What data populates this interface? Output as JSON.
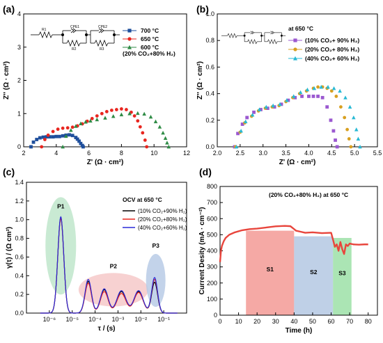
{
  "chart_data": [
    {
      "panel": "(a)",
      "type": "scatter",
      "xlabel": "Z' (Ω · cm²)",
      "ylabel": "Z'' (Ω · cm²)",
      "xlim": [
        2,
        12
      ],
      "ylim": [
        0,
        4
      ],
      "xticks": [
        "2",
        "4",
        "6",
        "8",
        "10",
        "12"
      ],
      "yticks": [
        "0",
        "1",
        "2",
        "3",
        "4"
      ],
      "legend_note": "(20% CO₂+80% H₂)",
      "circuit": [
        "R1",
        "CPE1",
        "R2",
        "CPE2",
        "R3"
      ],
      "series": [
        {
          "name": "700 °C",
          "color": "#1f4f9c",
          "marker": "square",
          "x": [
            2.45,
            2.6,
            2.8,
            3.0,
            3.2,
            3.4,
            3.6,
            3.8,
            4.0,
            4.2,
            4.4,
            4.6,
            4.8,
            5.0,
            5.2,
            5.3,
            5.4,
            5.5,
            5.6,
            5.65
          ],
          "y": [
            0.0,
            0.14,
            0.22,
            0.27,
            0.29,
            0.3,
            0.3,
            0.3,
            0.31,
            0.31,
            0.33,
            0.35,
            0.36,
            0.34,
            0.28,
            0.23,
            0.17,
            0.1,
            0.04,
            0.0
          ]
        },
        {
          "name": "650 °C",
          "color": "#e8261f",
          "marker": "circle",
          "x": [
            3.1,
            3.3,
            3.5,
            3.8,
            4.1,
            4.4,
            4.7,
            5.0,
            5.3,
            5.6,
            5.9,
            6.2,
            6.5,
            6.8,
            7.1,
            7.4,
            7.7,
            8.0,
            8.3,
            8.6,
            8.8,
            9.0,
            9.15,
            9.3,
            9.45,
            9.55
          ],
          "y": [
            0.0,
            0.22,
            0.35,
            0.46,
            0.53,
            0.56,
            0.57,
            0.59,
            0.63,
            0.69,
            0.77,
            0.85,
            0.93,
            1.0,
            1.06,
            1.1,
            1.12,
            1.14,
            1.12,
            1.04,
            0.93,
            0.78,
            0.6,
            0.42,
            0.2,
            0.0
          ]
        },
        {
          "name": "600 °C",
          "color": "#2e8b45",
          "marker": "triangle",
          "x": [
            4.4,
            4.6,
            4.9,
            5.2,
            5.5,
            5.8,
            6.1,
            6.5,
            7.0,
            7.5,
            8.0,
            8.5,
            9.0,
            9.4,
            9.8,
            10.1,
            10.35,
            10.55,
            10.7,
            10.8,
            10.9
          ],
          "y": [
            0.0,
            0.32,
            0.5,
            0.62,
            0.7,
            0.75,
            0.78,
            0.82,
            0.87,
            0.92,
            0.97,
            1.0,
            1.01,
            0.99,
            0.9,
            0.76,
            0.6,
            0.42,
            0.26,
            0.12,
            0.0
          ]
        }
      ]
    },
    {
      "panel": "(b)",
      "type": "scatter",
      "xlabel": "Z' (Ω · cm²)",
      "ylabel": "Z'' (Ω · cm²)",
      "xlim": [
        2.0,
        5.5
      ],
      "ylim": [
        0.0,
        1.0
      ],
      "xticks": [
        "2.0",
        "2.5",
        "3.0",
        "3.5",
        "4.0",
        "4.5",
        "5.0",
        "5.5"
      ],
      "yticks": [
        "0.0",
        "0.2",
        "0.4",
        "0.6",
        "0.8",
        "1.0"
      ],
      "legend_note": "at 650 °C",
      "series": [
        {
          "name": "(10% CO₂+ 90% H₂)",
          "color": "#9b59d0",
          "marker": "square",
          "x": [
            2.38,
            2.45,
            2.55,
            2.65,
            2.8,
            2.95,
            3.1,
            3.25,
            3.4,
            3.55,
            3.7,
            3.85,
            4.0,
            4.1,
            4.2,
            4.3,
            4.4,
            4.48,
            4.54,
            4.58,
            4.62
          ],
          "y": [
            0.0,
            0.1,
            0.17,
            0.22,
            0.26,
            0.28,
            0.29,
            0.3,
            0.32,
            0.35,
            0.37,
            0.38,
            0.38,
            0.38,
            0.38,
            0.37,
            0.3,
            0.2,
            0.12,
            0.05,
            0.0
          ]
        },
        {
          "name": "(20% CO₂+ 80% H₂)",
          "color": "#d8a020",
          "marker": "circle",
          "x": [
            2.4,
            2.5,
            2.6,
            2.75,
            2.9,
            3.05,
            3.2,
            3.35,
            3.5,
            3.65,
            3.8,
            3.95,
            4.1,
            4.2,
            4.3,
            4.4,
            4.5,
            4.6,
            4.7,
            4.78,
            4.84,
            4.88,
            4.92
          ],
          "y": [
            0.0,
            0.11,
            0.18,
            0.23,
            0.27,
            0.29,
            0.3,
            0.31,
            0.34,
            0.37,
            0.4,
            0.42,
            0.44,
            0.45,
            0.45,
            0.44,
            0.42,
            0.38,
            0.3,
            0.22,
            0.13,
            0.06,
            0.0
          ]
        },
        {
          "name": "(40% CO₂+ 60% H₂)",
          "color": "#28b9d4",
          "marker": "triangle",
          "x": [
            2.42,
            2.52,
            2.62,
            2.77,
            2.92,
            3.07,
            3.22,
            3.37,
            3.52,
            3.67,
            3.82,
            3.97,
            4.12,
            4.27,
            4.42,
            4.55,
            4.68,
            4.8,
            4.9,
            4.98,
            5.04,
            5.08,
            5.12
          ],
          "y": [
            0.0,
            0.12,
            0.19,
            0.24,
            0.28,
            0.3,
            0.31,
            0.32,
            0.35,
            0.38,
            0.41,
            0.43,
            0.44,
            0.45,
            0.45,
            0.44,
            0.42,
            0.37,
            0.3,
            0.22,
            0.13,
            0.06,
            0.0
          ]
        }
      ]
    },
    {
      "panel": "(c)",
      "type": "line",
      "xlabel": "τ / (s)",
      "ylabel": "γ(τ) / (Ω cm²)",
      "xscale": "log",
      "xlim": [
        1e-07,
        1
      ],
      "ylim": [
        0.0,
        1.4
      ],
      "xticks": [
        "10⁻⁶",
        "10⁻⁵",
        "10⁻⁴",
        "10⁻³",
        "10⁻²",
        "10⁻¹"
      ],
      "yticks": [
        "0.0",
        "0.2",
        "0.4",
        "0.6",
        "0.8",
        "1.0",
        "1.2",
        "1.4"
      ],
      "legend_title": "OCV at 650 °C",
      "regions": [
        "P1",
        "P2",
        "P3"
      ],
      "series": [
        {
          "name": "(10% CO₂+90% H₂)",
          "color": "#000000",
          "peaks": [
            {
              "logtau": -5.5,
              "h": 1.02,
              "w": 0.13
            },
            {
              "logtau": -4.3,
              "h": 0.34,
              "w": 0.14
            },
            {
              "logtau": -3.6,
              "h": 0.25,
              "w": 0.17
            },
            {
              "logtau": -2.85,
              "h": 0.23,
              "w": 0.2
            },
            {
              "logtau": -2.1,
              "h": 0.23,
              "w": 0.2
            },
            {
              "logtau": -1.4,
              "h": 0.33,
              "w": 0.13
            }
          ]
        },
        {
          "name": "(20% CO₂+80% H₂)",
          "color": "#e8261f",
          "peaks": [
            {
              "logtau": -5.5,
              "h": 1.01,
              "w": 0.13
            },
            {
              "logtau": -4.3,
              "h": 0.32,
              "w": 0.14
            },
            {
              "logtau": -3.6,
              "h": 0.23,
              "w": 0.17
            },
            {
              "logtau": -2.85,
              "h": 0.21,
              "w": 0.2
            },
            {
              "logtau": -2.1,
              "h": 0.22,
              "w": 0.2
            },
            {
              "logtau": -1.4,
              "h": 0.36,
              "w": 0.13
            }
          ]
        },
        {
          "name": "(40% CO₂+60% H₂)",
          "color": "#2a2ad8",
          "peaks": [
            {
              "logtau": -5.5,
              "h": 1.03,
              "w": 0.13
            },
            {
              "logtau": -4.3,
              "h": 0.36,
              "w": 0.14
            },
            {
              "logtau": -3.6,
              "h": 0.26,
              "w": 0.17
            },
            {
              "logtau": -2.85,
              "h": 0.24,
              "w": 0.2
            },
            {
              "logtau": -2.1,
              "h": 0.24,
              "w": 0.2
            },
            {
              "logtau": -1.4,
              "h": 0.38,
              "w": 0.13
            }
          ]
        }
      ]
    },
    {
      "panel": "(d)",
      "type": "line",
      "xlabel": "Time (h)",
      "ylabel": "Current Desity (mA · cm⁻²)",
      "xlim": [
        0,
        85
      ],
      "ylim": [
        0,
        800
      ],
      "xticks": [
        "0",
        "10",
        "20",
        "30",
        "40",
        "50",
        "60",
        "70",
        "80"
      ],
      "yticks": [
        "0",
        "100",
        "200",
        "300",
        "400",
        "500",
        "600",
        "700",
        "800"
      ],
      "annotation": "(20% CO₂+80% H₂) at 650 °C",
      "line_color": "#e8453c",
      "stages": [
        {
          "label": "S1",
          "x0": 14,
          "x1": 40,
          "top": 525,
          "color": "#f28c87"
        },
        {
          "label": "S2",
          "x0": 40,
          "x1": 61,
          "top": 490,
          "color": "#a9c0df"
        },
        {
          "label": "S3",
          "x0": 61,
          "x1": 71,
          "top": 480,
          "color": "#8fdc9b"
        }
      ],
      "series": [
        {
          "name": "current density",
          "x": [
            0,
            0.5,
            1,
            2,
            3,
            5,
            8,
            12,
            16,
            20,
            25,
            30,
            35,
            38,
            40,
            41,
            43,
            46,
            50,
            55,
            60,
            61,
            62,
            63,
            64,
            65,
            66,
            67,
            68,
            69,
            70,
            72,
            75,
            78,
            80
          ],
          "y": [
            330,
            400,
            430,
            460,
            480,
            500,
            515,
            528,
            535,
            538,
            545,
            552,
            555,
            553,
            535,
            525,
            520,
            512,
            515,
            510,
            512,
            470,
            425,
            440,
            400,
            455,
            410,
            380,
            440,
            430,
            445,
            440,
            438,
            440,
            440
          ]
        }
      ]
    }
  ]
}
